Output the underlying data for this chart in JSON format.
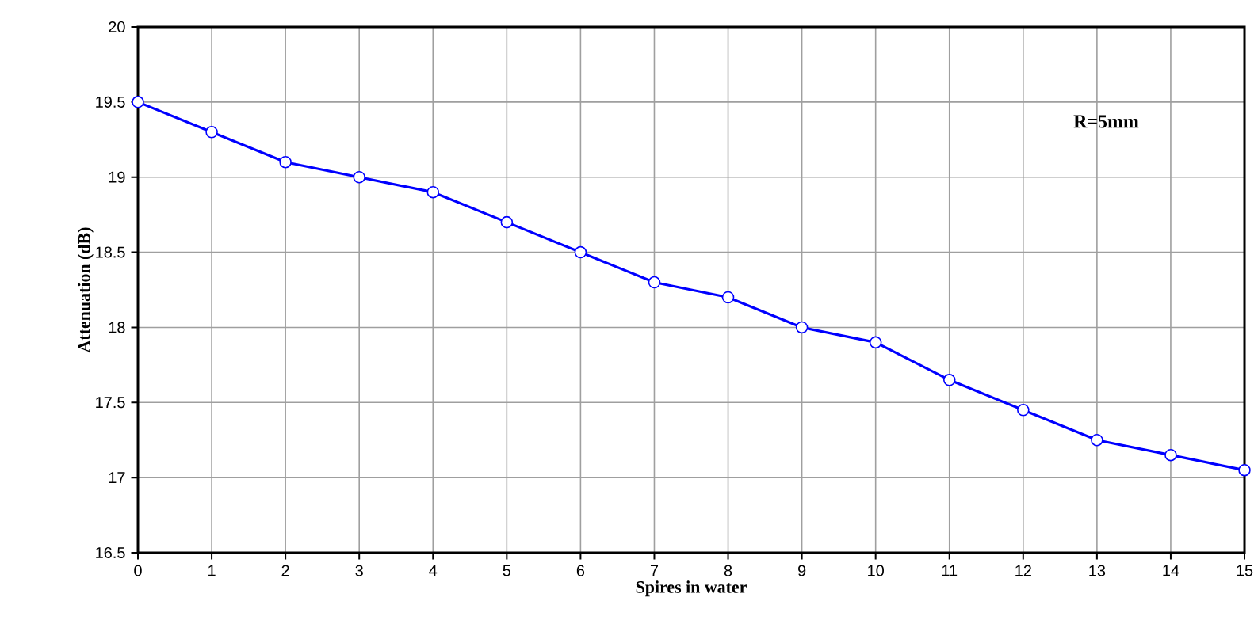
{
  "chart_data": {
    "type": "line",
    "xlabel": "Spires in water",
    "ylabel": "Attenuation (dB)",
    "x": [
      0,
      1,
      2,
      3,
      4,
      5,
      6,
      7,
      8,
      9,
      10,
      11,
      12,
      13,
      14,
      15
    ],
    "series": [
      {
        "color": "#0000ff",
        "values": [
          19.5,
          19.3,
          19.1,
          19.0,
          18.9,
          18.7,
          18.5,
          18.3,
          18.2,
          18.0,
          17.9,
          17.65,
          17.45,
          17.25,
          17.15,
          17.05
        ]
      }
    ],
    "xlim": [
      0,
      15
    ],
    "xticks": [
      0,
      1,
      2,
      3,
      4,
      5,
      6,
      7,
      8,
      9,
      10,
      11,
      12,
      13,
      14,
      15
    ],
    "ylim": [
      16.5,
      20
    ],
    "yticks": [
      16.5,
      17,
      17.5,
      18,
      18.5,
      19,
      19.5,
      20
    ],
    "grid": true,
    "marker": "circle",
    "line_style": "solid",
    "annotations": [
      "R=5mm"
    ]
  }
}
